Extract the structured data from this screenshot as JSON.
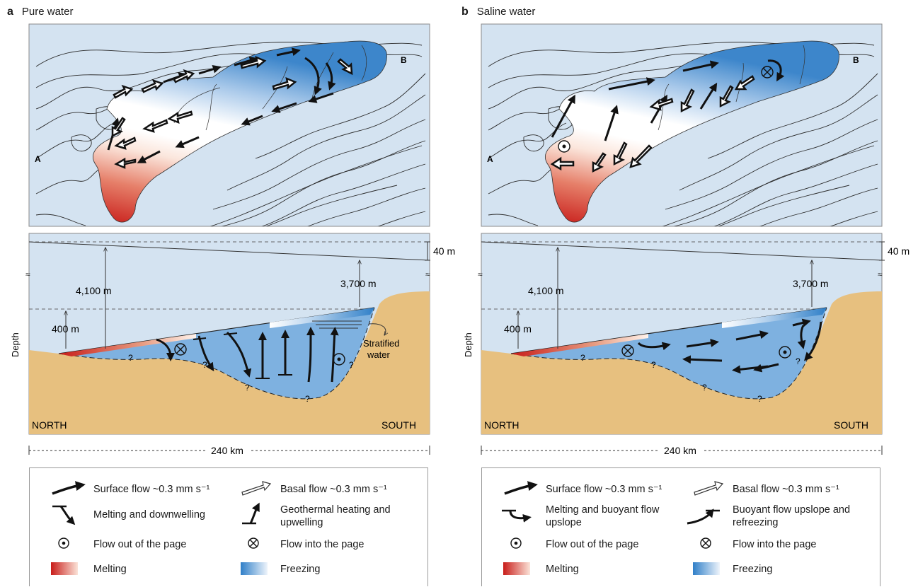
{
  "panels": [
    {
      "letter": "a",
      "title": "Pure water",
      "map_labels": {
        "start": "A",
        "end": "B"
      },
      "section": {
        "depth_label": "Depth",
        "dim_left": "4,100 m",
        "dim_right": "3,700 m",
        "dim_slope": "40 m",
        "dim_ice": "400 m",
        "north": "NORTH",
        "south": "SOUTH",
        "distance": "240 km",
        "annotation": "Stratified\nwater",
        "unknown": "?"
      },
      "legend": {
        "surface_flow": "Surface flow ~0.3 mm s⁻¹",
        "basal_flow": "Basal flow ~0.3 mm s⁻¹",
        "item_3": "Melting and downwelling",
        "item_4": "Geothermal heating and upwelling",
        "flow_out": "Flow out of the page",
        "flow_in": "Flow into the page",
        "melting": "Melting",
        "freezing": "Freezing"
      }
    },
    {
      "letter": "b",
      "title": "Saline water",
      "map_labels": {
        "start": "A",
        "end": "B"
      },
      "section": {
        "depth_label": "Depth",
        "dim_left": "4,100 m",
        "dim_right": "3,700 m",
        "dim_slope": "40 m",
        "dim_ice": "400 m",
        "north": "NORTH",
        "south": "SOUTH",
        "distance": "240 km",
        "annotation": "",
        "unknown": "?"
      },
      "legend": {
        "surface_flow": "Surface flow ~0.3 mm s⁻¹",
        "basal_flow": "Basal flow ~0.3 mm s⁻¹",
        "item_3": "Melting and buoyant flow upslope",
        "item_4": "Buoyant flow upslope and refreezing",
        "flow_out": "Flow out of the page",
        "flow_in": "Flow into the page",
        "melting": "Melting",
        "freezing": "Freezing"
      }
    }
  ],
  "colors": {
    "ice": "#d4e3f1",
    "sediment": "#e7c07f",
    "lake_blue": "#7eb1e0",
    "melt_red": "#c81d1a",
    "freeze_blue": "#2f7fc8"
  }
}
